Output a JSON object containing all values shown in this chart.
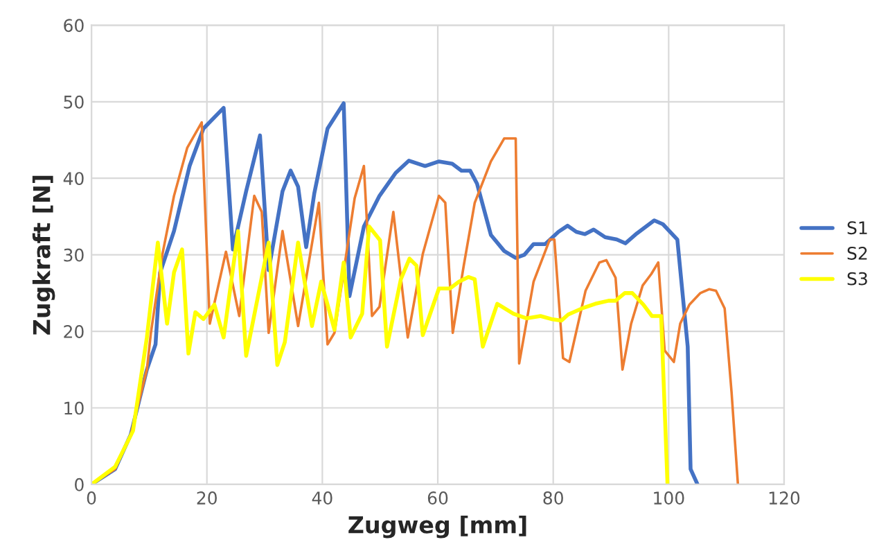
{
  "chart_data": {
    "type": "line",
    "xlabel": "Zugweg [mm]",
    "ylabel": "Zugkraft [N]",
    "xlim": [
      0,
      120
    ],
    "xticks": [
      0,
      20,
      40,
      60,
      80,
      100,
      120
    ],
    "ylim": [
      0,
      60
    ],
    "yticks": [
      0,
      10,
      20,
      30,
      40,
      50,
      60
    ],
    "grid": true,
    "legend": "right",
    "marker": "none",
    "line_style": "solid",
    "series": [
      {
        "name": "S1",
        "color": "#4472c4",
        "x": [
          0,
          4.1,
          6.8,
          9.6,
          11.1,
          11.9,
          14.3,
          17,
          19.4,
          22.9,
          24.5,
          26.8,
          29.2,
          30.7,
          33.1,
          34.5,
          35.8,
          37.2,
          38.6,
          40.9,
          43.7,
          44.7,
          47.2,
          49.9,
          52.7,
          55,
          57.8,
          60.2,
          62.5,
          64.1,
          65.6,
          66.8,
          69.2,
          71.5,
          73.5,
          75,
          76.6,
          78.6,
          80.9,
          82.5,
          84,
          85.5,
          87,
          89,
          91,
          92.5,
          94.5,
          97.5,
          99,
          101.5,
          103.3,
          103.8,
          105
        ],
        "values": [
          0,
          2,
          6.5,
          15,
          18.3,
          27.7,
          33.1,
          41.6,
          46.5,
          49.2,
          30.7,
          38.3,
          45.6,
          28,
          38.3,
          41,
          38.9,
          31,
          38,
          46.5,
          49.8,
          24.6,
          33.7,
          37.7,
          40.7,
          42.3,
          41.6,
          42.2,
          41.9,
          41,
          41,
          39.3,
          32.6,
          30.5,
          29.6,
          30,
          31.4,
          31.4,
          33,
          33.8,
          33,
          32.7,
          33.3,
          32.3,
          32,
          31.5,
          32.8,
          34.5,
          34,
          32,
          18,
          2,
          0
        ]
      },
      {
        "name": "S2",
        "color": "#ed7d31",
        "x": [
          0,
          4.1,
          6.8,
          9.6,
          10.3,
          12.3,
          14.3,
          16.6,
          19.1,
          20.5,
          23.3,
          25.6,
          28.2,
          29.5,
          30.7,
          33.1,
          35.8,
          39.4,
          40.9,
          42.1,
          45.6,
          47.2,
          48.6,
          49.9,
          52.3,
          54.8,
          57.4,
          60.2,
          61.3,
          62.6,
          64.5,
          66.4,
          69.2,
          71.5,
          73.5,
          74.1,
          76.6,
          79.4,
          80.2,
          81.7,
          82.8,
          85.6,
          88,
          89.2,
          90.8,
          92,
          93.5,
          95.5,
          97,
          98.2,
          99.3,
          100.9,
          102,
          103.6,
          105.5,
          107,
          108.2,
          109.7,
          110.9,
          112
        ],
        "values": [
          0,
          2,
          6.5,
          15,
          19.8,
          30.1,
          37.7,
          44,
          47.3,
          21,
          30.4,
          22,
          37.7,
          35.6,
          19.8,
          33.1,
          20.7,
          36.8,
          18.3,
          19.8,
          37.4,
          41.6,
          22,
          23.2,
          35.6,
          19.2,
          30.1,
          37.7,
          36.8,
          19.8,
          28.6,
          36.8,
          42.2,
          45.2,
          45.2,
          15.8,
          26.5,
          32,
          32,
          16.5,
          16,
          25.3,
          29,
          29.3,
          27,
          15,
          21,
          26,
          27.5,
          29,
          17.5,
          16,
          21,
          23.5,
          25,
          25.5,
          25.3,
          23,
          12,
          0
        ]
      },
      {
        "name": "S3",
        "color": "#ffff00",
        "x": [
          0,
          4.1,
          7.2,
          9.6,
          11.5,
          13.1,
          14.3,
          15.7,
          16.8,
          18,
          19.4,
          21.3,
          22.9,
          25.4,
          26.8,
          30.7,
          32.2,
          33.5,
          35.8,
          38.2,
          39.8,
          42.1,
          43.7,
          44.9,
          46.9,
          48.1,
          50,
          51.2,
          53.6,
          55.1,
          56.3,
          57.4,
          60.2,
          62.1,
          63.7,
          65.3,
          66.4,
          67.8,
          70.3,
          73.1,
          75.4,
          77.8,
          79.7,
          81.4,
          82.6,
          85,
          87.3,
          89.6,
          90.8,
          92.4,
          93.7,
          95.6,
          97.1,
          98.7,
          99.8
        ],
        "values": [
          0,
          2.3,
          7,
          19.2,
          31.6,
          21,
          27.7,
          30.7,
          17.1,
          22.5,
          21.6,
          23.5,
          19.2,
          33.1,
          16.8,
          31.6,
          15.6,
          18.6,
          31.6,
          20.7,
          26.5,
          20.2,
          29,
          19.2,
          22.3,
          33.7,
          31.9,
          18,
          26.8,
          29.5,
          28.6,
          19.5,
          25.6,
          25.6,
          26.5,
          27.1,
          26.8,
          18,
          23.6,
          22.3,
          21.7,
          22,
          21.6,
          21.4,
          22.2,
          23,
          23.6,
          24,
          24,
          25,
          25,
          23.5,
          22,
          22,
          0
        ]
      }
    ]
  }
}
